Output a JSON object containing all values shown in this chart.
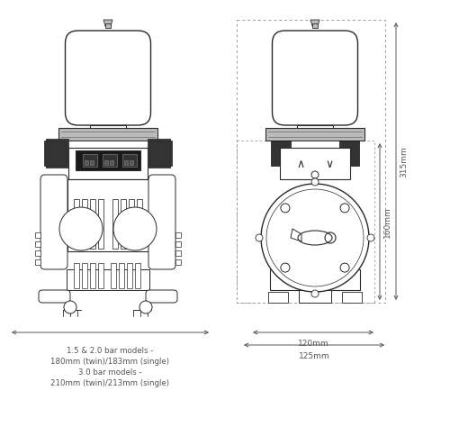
{
  "bg_color": "#ffffff",
  "line_color": "#2a2a2a",
  "dim_color": "#555555",
  "dark_color": "#1a1a1a",
  "mid_gray": "#666666",
  "light_gray": "#bbbbbb",
  "dashed_color": "#999999",
  "text_lines": [
    "1.5 & 2.0 bar models -",
    "180mm (twin)/183mm (single)",
    "3.0 bar models -",
    "210mm (twin)/213mm (single)"
  ],
  "dim_120": "120mm",
  "dim_125": "125mm",
  "dim_315": "315mm",
  "dim_160": "160mm"
}
